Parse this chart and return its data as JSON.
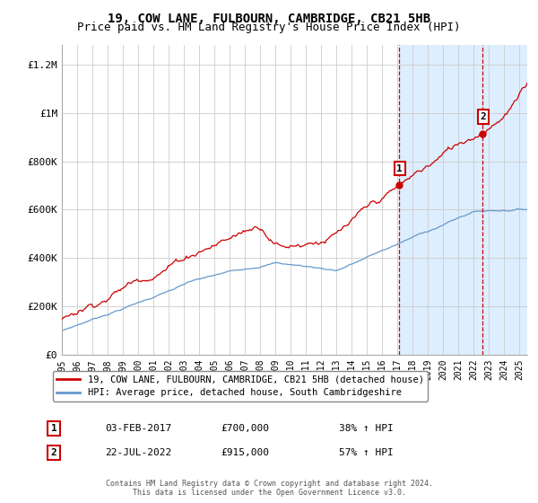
{
  "title": "19, COW LANE, FULBOURN, CAMBRIDGE, CB21 5HB",
  "subtitle": "Price paid vs. HM Land Registry's House Price Index (HPI)",
  "legend_line1": "19, COW LANE, FULBOURN, CAMBRIDGE, CB21 5HB (detached house)",
  "legend_line2": "HPI: Average price, detached house, South Cambridgeshire",
  "sale1_label": "1",
  "sale1_date": "03-FEB-2017",
  "sale1_price": "£700,000",
  "sale1_hpi": "38% ↑ HPI",
  "sale2_label": "2",
  "sale2_date": "22-JUL-2022",
  "sale2_price": "£915,000",
  "sale2_hpi": "57% ↑ HPI",
  "footnote": "Contains HM Land Registry data © Crown copyright and database right 2024.\nThis data is licensed under the Open Government Licence v3.0.",
  "ylim": [
    0,
    1280000
  ],
  "yticks": [
    0,
    200000,
    400000,
    600000,
    800000,
    1000000,
    1200000
  ],
  "ytick_labels": [
    "£0",
    "£200K",
    "£400K",
    "£600K",
    "£800K",
    "£1M",
    "£1.2M"
  ],
  "xmin": 1995.0,
  "xmax": 2025.5,
  "sale1_x": 2017.085,
  "sale1_y": 700000,
  "sale2_x": 2022.554,
  "sale2_y": 915000,
  "red_color": "#cc0000",
  "blue_color": "#6699cc",
  "shade_color": "#ddeeff",
  "vline_color": "#cc0000",
  "grid_color": "#cccccc",
  "background_color": "#ffffff",
  "title_fontsize": 10,
  "subtitle_fontsize": 9
}
